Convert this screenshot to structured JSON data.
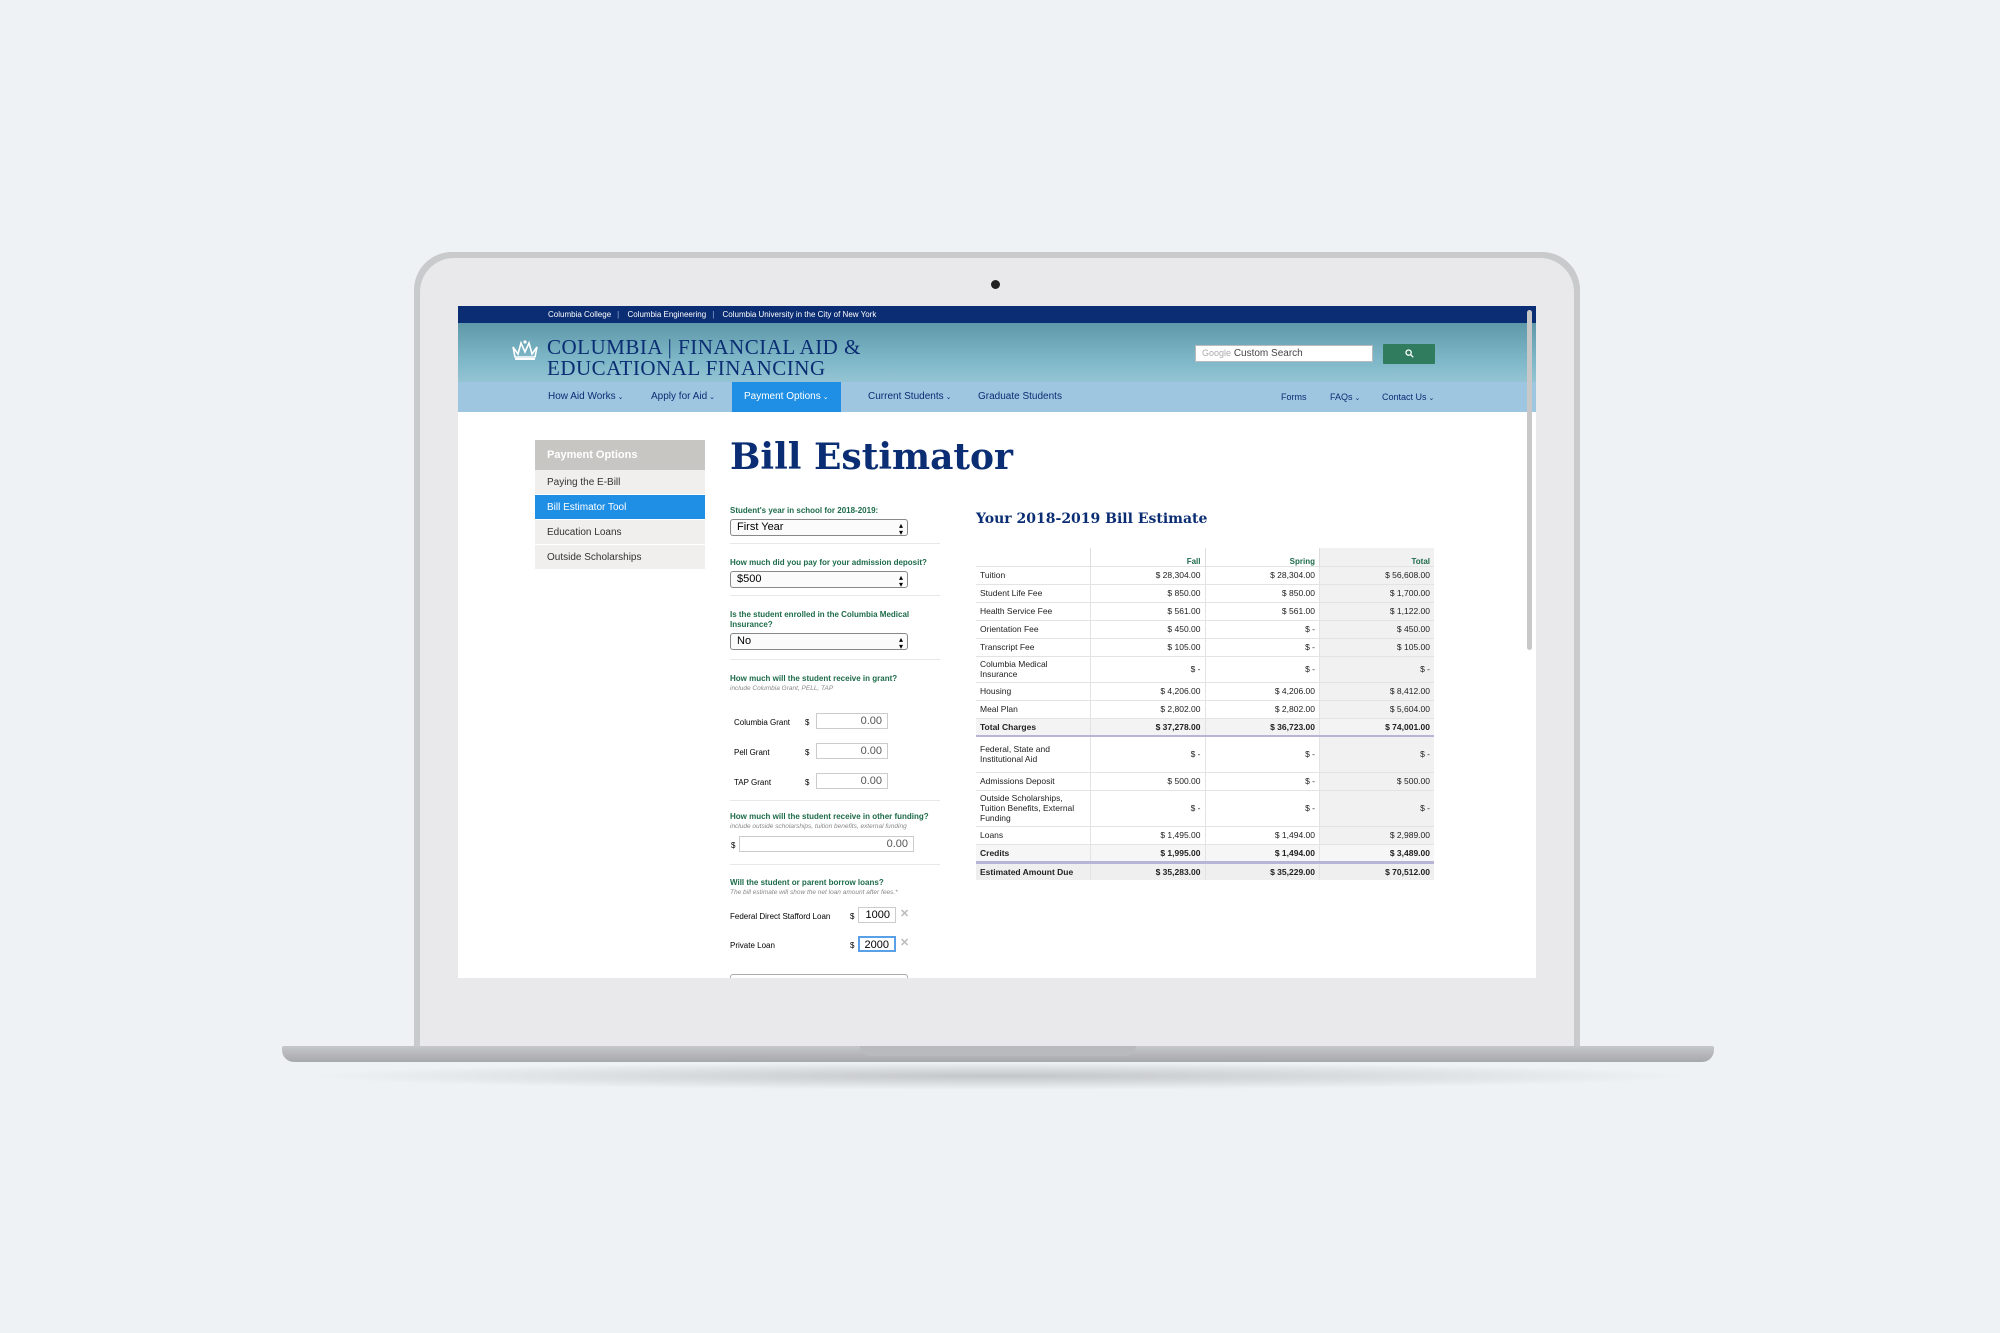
{
  "topbar": {
    "links": [
      "Columbia College",
      "Columbia Engineering",
      "Columbia University in the City of New York"
    ]
  },
  "header": {
    "logo_line1": "COLUMBIA | FINANCIAL AID &",
    "logo_line2": "EDUCATIONAL FINANCING",
    "search_brand": "Google",
    "search_placeholder": "Custom Search"
  },
  "nav": {
    "items": [
      "How Aid Works",
      "Apply for Aid",
      "Payment Options",
      "Current Students",
      "Graduate Students"
    ],
    "right": [
      "Forms",
      "FAQs",
      "Contact Us"
    ],
    "active": "Payment Options"
  },
  "sidebar": {
    "heading": "Payment Options",
    "items": [
      "Paying the E-Bill",
      "Bill Estimator Tool",
      "Education Loans",
      "Outside Scholarships"
    ],
    "active": "Bill Estimator Tool"
  },
  "page": {
    "title": "Bill Estimator"
  },
  "form": {
    "q1": "Student's year in school for 2018-2019:",
    "q1_value": "First Year",
    "q2": "How much did you pay for your admission deposit?",
    "q2_value": "$500",
    "q3": "Is the student enrolled in the Columbia Medical Insurance?",
    "q3_value": "No",
    "q4": "How much will the student receive in grant?",
    "q4_hint": "include Columbia Grant, PELL, TAP",
    "grants": [
      {
        "label": "Columbia Grant",
        "currency": "$",
        "value": "0.00"
      },
      {
        "label": "Pell Grant",
        "currency": "$",
        "value": "0.00"
      },
      {
        "label": "TAP Grant",
        "currency": "$",
        "value": "0.00"
      }
    ],
    "q5": "How much will the student receive in other funding?",
    "q5_hint": "include outside scholarships, tuition benefits, external funding",
    "other_currency": "$",
    "other_value": "0.00",
    "q6": "Will the student or parent borrow loans?",
    "q6_hint": "The bill estimate will show the net loan amount after fees.*",
    "loans": [
      {
        "label": "Federal Direct Stafford Loan",
        "currency": "$",
        "value": "1000"
      },
      {
        "label": "Private Loan",
        "currency": "$",
        "value": "2000"
      }
    ],
    "remove_symbol": "✕"
  },
  "estimate": {
    "title": "Your 2018-2019 Bill Estimate",
    "columns": [
      "",
      "Fall",
      "Spring",
      "Total"
    ],
    "rows": [
      [
        "Tuition",
        "$ 28,304.00",
        "$ 28,304.00",
        "$ 56,608.00"
      ],
      [
        "Student Life Fee",
        "$ 850.00",
        "$ 850.00",
        "$ 1,700.00"
      ],
      [
        "Health Service Fee",
        "$ 561.00",
        "$ 561.00",
        "$ 1,122.00"
      ],
      [
        "Orientation Fee",
        "$ 450.00",
        "$ -",
        "$ 450.00"
      ],
      [
        "Transcript Fee",
        "$ 105.00",
        "$ -",
        "$ 105.00"
      ],
      [
        "Columbia Medical Insurance",
        "$ -",
        "$ -",
        "$ -"
      ],
      [
        "Housing",
        "$ 4,206.00",
        "$ 4,206.00",
        "$ 8,412.00"
      ],
      [
        "Meal Plan",
        "$ 2,802.00",
        "$ 2,802.00",
        "$ 5,604.00"
      ]
    ],
    "total_charges": [
      "Total Charges",
      "$ 37,278.00",
      "$ 36,723.00",
      "$ 74,001.00"
    ],
    "credit_rows": [
      [
        "Federal, State and Institutional Aid",
        "$ -",
        "$ -",
        "$ -"
      ],
      [
        "Admissions Deposit",
        "$ 500.00",
        "$ -",
        "$ 500.00"
      ],
      [
        "Outside Scholarships, Tuition Benefits, External Funding",
        "$ -",
        "$ -",
        "$ -"
      ],
      [
        "Loans",
        "$ 1,495.00",
        "$ 1,494.00",
        "$ 2,989.00"
      ]
    ],
    "credits": [
      "Credits",
      "$ 1,995.00",
      "$ 1,494.00",
      "$ 3,489.00"
    ],
    "due": [
      "Estimated Amount Due",
      "$ 35,283.00",
      "$ 35,229.00",
      "$ 70,512.00"
    ]
  }
}
